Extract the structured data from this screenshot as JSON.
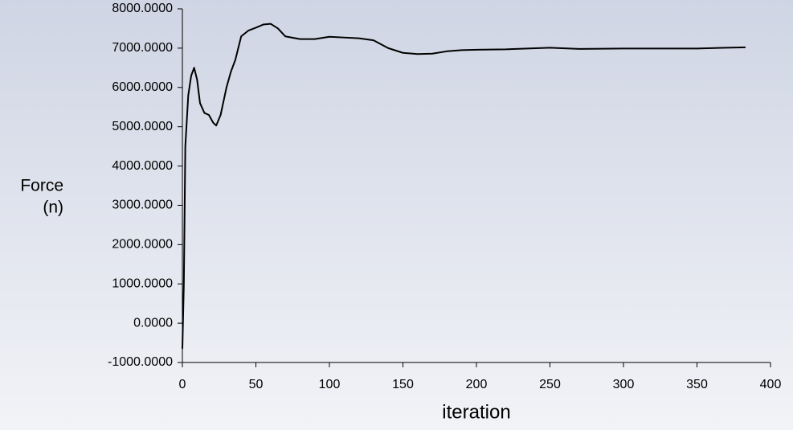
{
  "chart_data": {
    "type": "line",
    "x_label": "iteration",
    "y_label": [
      "Force",
      "(n)"
    ],
    "x": [
      0,
      1,
      2,
      4,
      6,
      8,
      10,
      12,
      15,
      18,
      21,
      23,
      26,
      30,
      33,
      36,
      40,
      45,
      50,
      55,
      60,
      65,
      70,
      80,
      90,
      100,
      110,
      120,
      130,
      140,
      150,
      160,
      170,
      180,
      190,
      200,
      220,
      250,
      270,
      300,
      330,
      350,
      370,
      383
    ],
    "series": [
      {
        "color": "#000000",
        "values": [
          -650,
          1000,
          4500,
          5800,
          6300,
          6500,
          6200,
          5600,
          5350,
          5300,
          5100,
          5030,
          5300,
          6000,
          6400,
          6700,
          7300,
          7450,
          7520,
          7600,
          7620,
          7500,
          7300,
          7230,
          7230,
          7290,
          7270,
          7250,
          7200,
          7000,
          6880,
          6850,
          6860,
          6920,
          6950,
          6960,
          6970,
          7010,
          6980,
          6990,
          6990,
          6990,
          7010,
          7020
        ]
      }
    ],
    "xlim": [
      0,
      400
    ],
    "xticks": [
      0,
      50,
      100,
      150,
      200,
      250,
      300,
      350,
      400
    ],
    "ylim": [
      -1000,
      8000
    ],
    "yticks": [
      {
        "value": -1000,
        "label": "-1000.0000"
      },
      {
        "value": 0,
        "label": "0.0000"
      },
      {
        "value": 1000,
        "label": "1000.0000"
      },
      {
        "value": 2000,
        "label": "2000.0000"
      },
      {
        "value": 3000,
        "label": "3000.0000"
      },
      {
        "value": 4000,
        "label": "4000.0000"
      },
      {
        "value": 5000,
        "label": "5000.0000"
      },
      {
        "value": 6000,
        "label": "6000.0000"
      },
      {
        "value": 7000,
        "label": "7000.0000"
      },
      {
        "value": 8000,
        "label": "8000.0000"
      }
    ],
    "grid": false
  }
}
